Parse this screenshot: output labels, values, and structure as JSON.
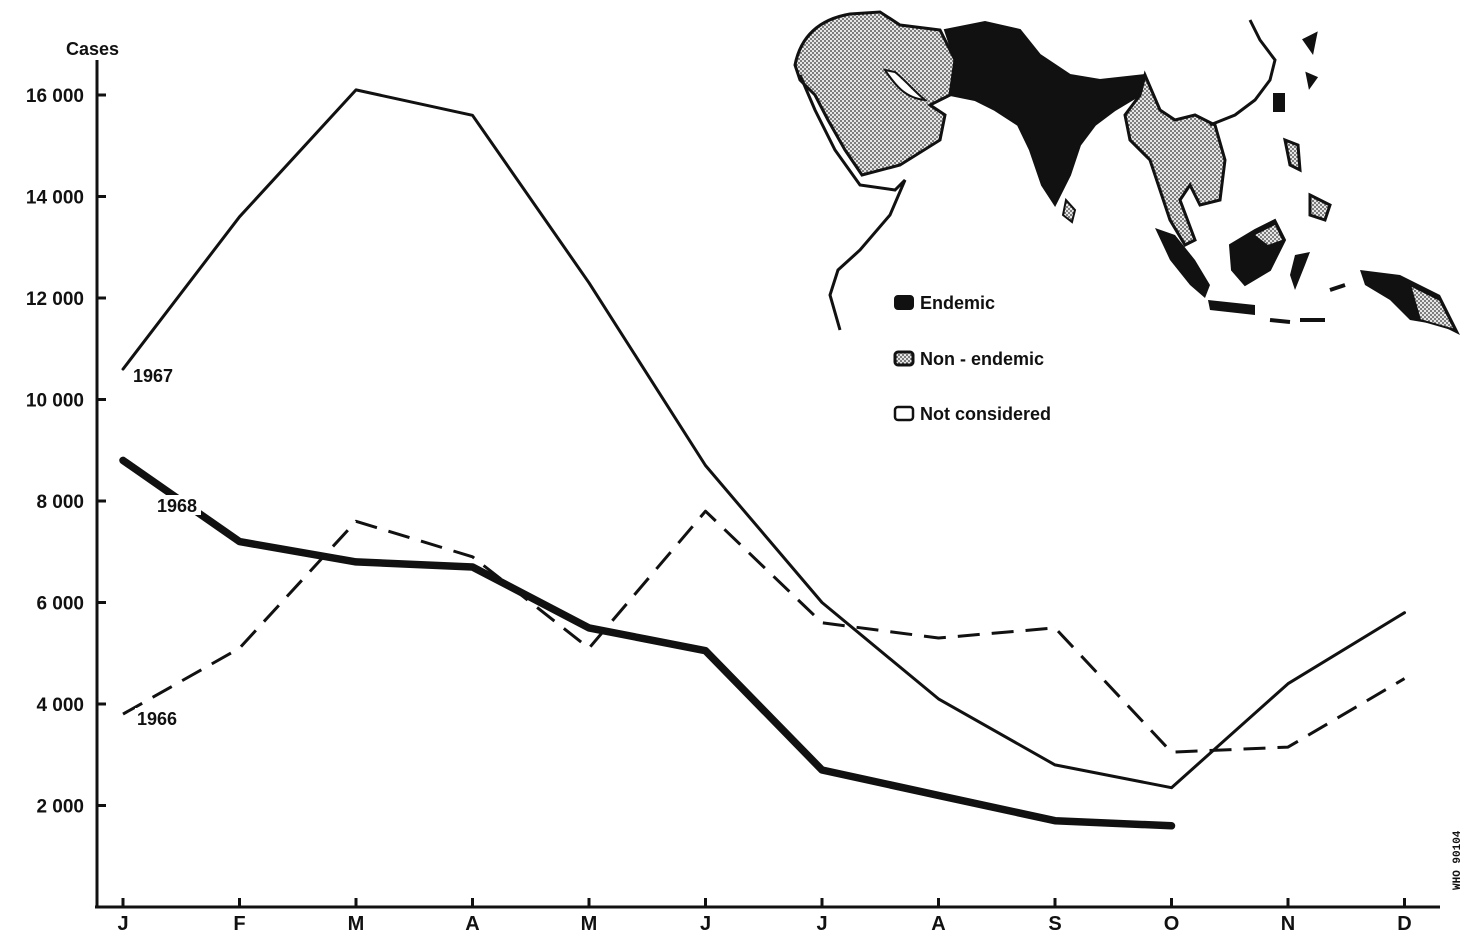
{
  "chart_data": {
    "type": "line",
    "ylabel": "Cases",
    "ylim": [
      0,
      16000
    ],
    "yticks": [
      2000,
      4000,
      6000,
      8000,
      10000,
      12000,
      14000,
      16000
    ],
    "ytick_labels": [
      "2 000",
      "4 000",
      "6 000",
      "8 000",
      "10 000",
      "12 000",
      "14 000",
      "16 000"
    ],
    "categories": [
      "J",
      "F",
      "M",
      "A",
      "M",
      "J",
      "J",
      "A",
      "S",
      "O",
      "N",
      "D"
    ],
    "series": [
      {
        "name": "1967",
        "style": "solid",
        "values": [
          10600,
          13600,
          16100,
          15600,
          12300,
          8700,
          6000,
          4100,
          2800,
          2350,
          4400,
          5800
        ]
      },
      {
        "name": "1966",
        "style": "dashed",
        "values": [
          3800,
          5100,
          7600,
          6900,
          5100,
          7800,
          5600,
          5300,
          5500,
          3050,
          3150,
          4500
        ]
      },
      {
        "name": "1968",
        "style": "thick",
        "values": [
          8800,
          7200,
          6800,
          6700,
          5500,
          5050,
          2700,
          2200,
          1700,
          1600,
          null,
          null
        ]
      }
    ],
    "legend": {
      "placement": "top-right",
      "items": [
        {
          "label": "Endemic",
          "pattern": "solid-black"
        },
        {
          "label": "Non - endemic",
          "pattern": "dotted"
        },
        {
          "label": "Not considered",
          "pattern": "white"
        }
      ]
    },
    "map_inset": {
      "placement": "top-right"
    },
    "code": "WHO 90104"
  }
}
